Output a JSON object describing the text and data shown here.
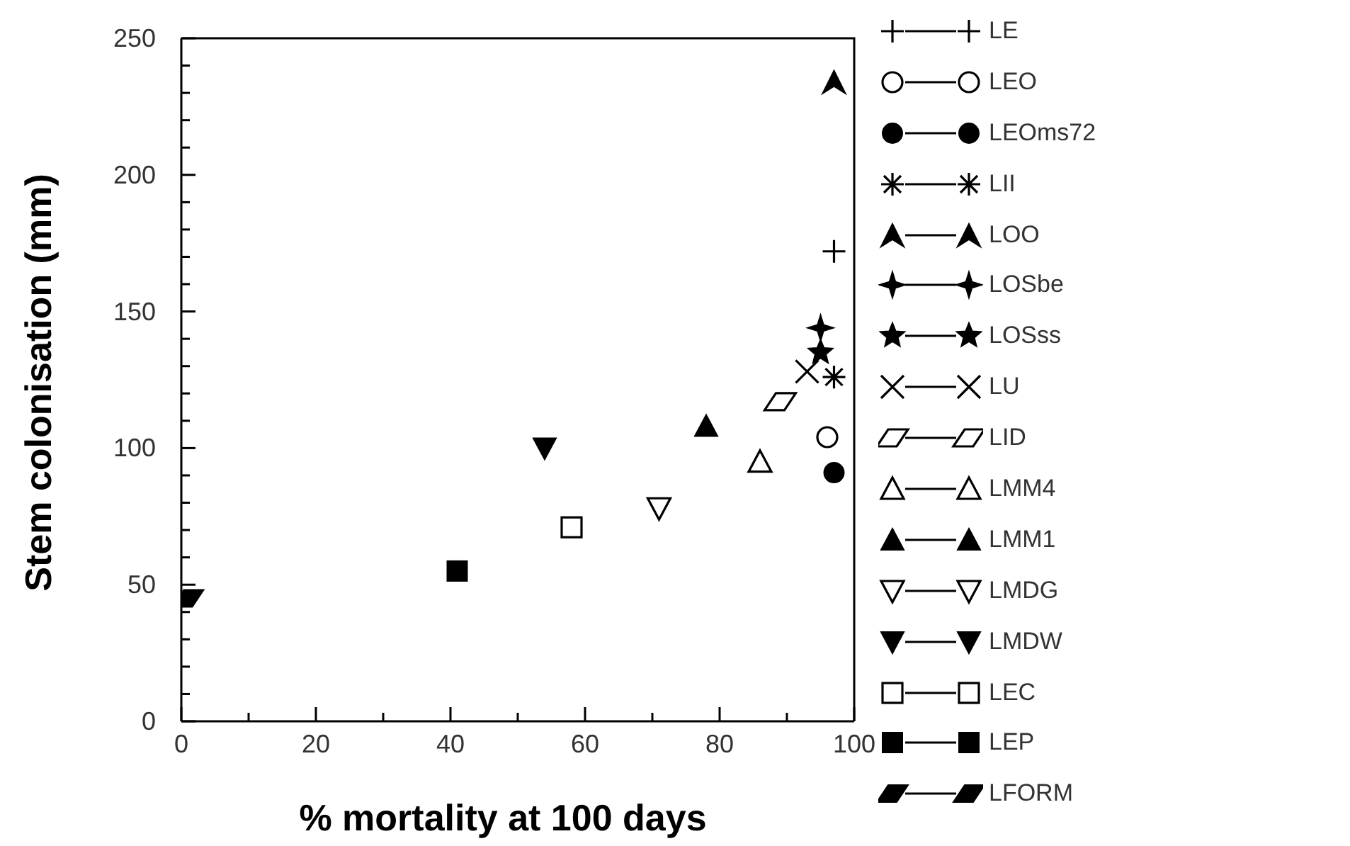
{
  "chart_data": {
    "type": "scatter",
    "xlabel": "% mortality at 100 days",
    "ylabel": "Stem colonisation (mm)",
    "xlim": [
      0,
      100
    ],
    "ylim": [
      0,
      250
    ],
    "xticks": [
      0,
      {
        "value": 10,
        "label": null
      },
      20,
      {
        "value": 30,
        "label": null
      },
      40,
      {
        "value": 50,
        "label": null
      },
      60,
      {
        "value": 70,
        "label": null
      },
      80,
      {
        "value": 90,
        "label": null
      },
      100
    ],
    "yticks": [
      0,
      {
        "value": 10,
        "label": null
      },
      {
        "value": 20,
        "label": null
      },
      {
        "value": 30,
        "label": null
      },
      {
        "value": 40,
        "label": null
      },
      50,
      {
        "value": 60,
        "label": null
      },
      {
        "value": 70,
        "label": null
      },
      {
        "value": 80,
        "label": null
      },
      {
        "value": 90,
        "label": null
      },
      100,
      {
        "value": 110,
        "label": null
      },
      {
        "value": 120,
        "label": null
      },
      {
        "value": 130,
        "label": null
      },
      {
        "value": 140,
        "label": null
      },
      150,
      {
        "value": 160,
        "label": null
      },
      {
        "value": 170,
        "label": null
      },
      {
        "value": 180,
        "label": null
      },
      {
        "value": 190,
        "label": null
      },
      200,
      {
        "value": 210,
        "label": null
      },
      {
        "value": 220,
        "label": null
      },
      {
        "value": 230,
        "label": null
      },
      {
        "value": 240,
        "label": null
      },
      250
    ],
    "grid": false,
    "legend": "right",
    "series": [
      {
        "name": "LE",
        "color": "#000000",
        "x": [
          97
        ],
        "values": [
          172
        ]
      },
      {
        "name": "LEO",
        "color": "#000000",
        "x": [
          96
        ],
        "values": [
          104
        ]
      },
      {
        "name": "LEOms72",
        "color": "#000000",
        "x": [
          97
        ],
        "values": [
          91
        ]
      },
      {
        "name": "LII",
        "color": "#000000",
        "x": [
          97
        ],
        "values": [
          126
        ]
      },
      {
        "name": "LOO",
        "color": "#000000",
        "x": [
          97
        ],
        "values": [
          234
        ]
      },
      {
        "name": "LOSbe",
        "color": "#000000",
        "x": [
          95
        ],
        "values": [
          144
        ]
      },
      {
        "name": "LOSss",
        "color": "#000000",
        "x": [
          95
        ],
        "values": [
          135
        ]
      },
      {
        "name": "LU",
        "color": "#000000",
        "x": [
          93
        ],
        "values": [
          128
        ]
      },
      {
        "name": "LID",
        "color": "#000000",
        "x": [
          89
        ],
        "values": [
          117
        ]
      },
      {
        "name": "LMM4",
        "color": "#000000",
        "x": [
          86
        ],
        "values": [
          95
        ]
      },
      {
        "name": "LMM1",
        "color": "#000000",
        "x": [
          78
        ],
        "values": [
          108
        ]
      },
      {
        "name": "LMDG",
        "color": "#000000",
        "x": [
          71
        ],
        "values": [
          78
        ]
      },
      {
        "name": "LMDW",
        "color": "#000000",
        "x": [
          54
        ],
        "values": [
          100
        ]
      },
      {
        "name": "LEC",
        "color": "#000000",
        "x": [
          58
        ],
        "values": [
          71
        ]
      },
      {
        "name": "LEP",
        "color": "#000000",
        "x": [
          41
        ],
        "values": [
          55
        ]
      },
      {
        "name": "LFORM",
        "color": "#000000",
        "x": [
          1
        ],
        "values": [
          45
        ]
      }
    ]
  }
}
